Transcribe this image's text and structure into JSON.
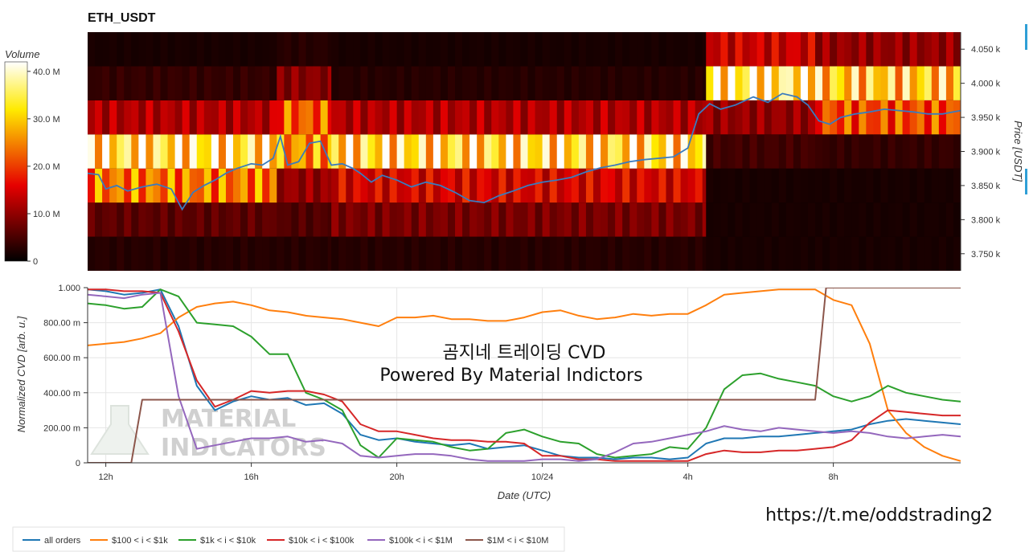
{
  "page": {
    "title": "ETH_USDT",
    "overlay_title": "곰지네 트레이딩 CVD",
    "overlay_subtitle": "Powered By Material Indictors",
    "watermark_line1": "MATERIAL",
    "watermark_line2": "INDICATORS",
    "url": "https://t.me/oddstrading2"
  },
  "colors": {
    "all_orders": "#1f77b4",
    "band_100_1k": "#ff7f0e",
    "band_1k_10k": "#2ca02c",
    "band_10k_100k": "#d62728",
    "band_100k_1m": "#9467bd",
    "band_1m_10m": "#8c564b",
    "price_line": "#3a7bbf"
  },
  "chart_data": [
    {
      "type": "heatmap",
      "title": "ETH_USDT",
      "colorbar": {
        "label": "Volume",
        "ticks": [
          "40.0 M",
          "30.0 M",
          "20.0 M",
          "10.0 M",
          "0"
        ],
        "tick_values": [
          40,
          30,
          20,
          10,
          0
        ],
        "range": [
          0,
          42
        ],
        "colorscale": "hot"
      },
      "ylabel": "Price [USDT]",
      "ylim": [
        3725,
        4075
      ],
      "yticks": [
        "3.750 k",
        "3.800 k",
        "3.850 k",
        "3.900 k",
        "3.950 k",
        "4.000 k",
        "4.050 k"
      ],
      "ytick_values": [
        3750,
        3800,
        3850,
        3900,
        3950,
        4000,
        4050
      ],
      "price_levels": [
        3750,
        3800,
        3850,
        3900,
        3950,
        4000,
        4050
      ],
      "xlim": [
        11.5,
        35.5
      ],
      "segments": [
        {
          "x": [
            11.5,
            16.7
          ],
          "volume_by_level": [
            2,
            6,
            24,
            34,
            12,
            3,
            1
          ]
        },
        {
          "x": [
            16.7,
            18.2
          ],
          "volume_by_level": [
            2,
            5,
            10,
            26,
            22,
            9,
            2
          ]
        },
        {
          "x": [
            18.2,
            28.5
          ],
          "volume_by_level": [
            2,
            8,
            15,
            33,
            12,
            2,
            1
          ]
        },
        {
          "x": [
            28.5,
            31.5
          ],
          "volume_by_level": [
            1,
            1,
            1,
            4,
            10,
            36,
            14
          ]
        },
        {
          "x": [
            31.5,
            35.5
          ],
          "volume_by_level": [
            1,
            1,
            1,
            3,
            21,
            31,
            10
          ]
        }
      ],
      "price_series": {
        "x": [
          11.5,
          11.8,
          12.0,
          12.3,
          12.6,
          13.0,
          13.4,
          13.8,
          14.1,
          14.4,
          14.7,
          15.0,
          15.3,
          15.6,
          16.0,
          16.3,
          16.6,
          16.8,
          17.0,
          17.3,
          17.6,
          17.9,
          18.2,
          18.5,
          18.8,
          19.0,
          19.3,
          19.6,
          20.0,
          20.4,
          20.8,
          21.2,
          21.6,
          22.0,
          22.4,
          22.8,
          23.2,
          23.6,
          24.0,
          24.4,
          24.8,
          25.2,
          25.6,
          26.0,
          26.4,
          26.8,
          27.2,
          27.6,
          28.0,
          28.3,
          28.6,
          28.9,
          29.3,
          29.8,
          30.2,
          30.6,
          31.0,
          31.3,
          31.6,
          31.9,
          32.2,
          32.6,
          33.0,
          33.4,
          33.8,
          34.2,
          34.6,
          35.0,
          35.5
        ],
        "y": [
          3868,
          3866,
          3845,
          3850,
          3842,
          3848,
          3852,
          3845,
          3815,
          3840,
          3850,
          3858,
          3868,
          3875,
          3882,
          3880,
          3890,
          3922,
          3880,
          3885,
          3912,
          3915,
          3880,
          3882,
          3875,
          3868,
          3855,
          3865,
          3858,
          3848,
          3855,
          3850,
          3840,
          3828,
          3825,
          3835,
          3842,
          3850,
          3855,
          3858,
          3862,
          3870,
          3876,
          3880,
          3885,
          3888,
          3890,
          3892,
          3905,
          3955,
          3970,
          3962,
          3968,
          3980,
          3972,
          3985,
          3980,
          3968,
          3945,
          3940,
          3950,
          3955,
          3958,
          3962,
          3960,
          3958,
          3955,
          3955,
          3960
        ]
      }
    },
    {
      "type": "line",
      "xlabel": "Date (UTC)",
      "ylabel": "Normalized CVD [arb. u.]",
      "ylim": [
        0,
        1.0
      ],
      "yticks": [
        "0",
        "200.00 m",
        "400.00 m",
        "600.00 m",
        "800.00 m",
        "1.000"
      ],
      "ytick_values": [
        0,
        0.2,
        0.4,
        0.6,
        0.8,
        1.0
      ],
      "xlim": [
        11.5,
        35.5
      ],
      "xticks": [
        "12h",
        "16h",
        "20h",
        "10/24",
        "4h",
        "8h"
      ],
      "xtick_values": [
        12,
        16,
        20,
        24,
        28,
        32
      ],
      "series": [
        {
          "name": "all orders",
          "color_key": "all_orders",
          "x": [
            11.5,
            12.0,
            12.5,
            13.0,
            13.5,
            14.0,
            14.5,
            15.0,
            15.5,
            16.0,
            16.5,
            17.0,
            17.5,
            18.0,
            18.5,
            19.0,
            19.5,
            20.0,
            20.5,
            21.0,
            21.5,
            22.0,
            22.5,
            23.0,
            23.5,
            24.0,
            24.5,
            25.0,
            25.5,
            26.0,
            26.5,
            27.0,
            27.5,
            28.0,
            28.5,
            29.0,
            29.5,
            30.0,
            30.5,
            31.0,
            31.5,
            32.0,
            32.5,
            33.0,
            33.5,
            34.0,
            34.5,
            35.0,
            35.5
          ],
          "y": [
            0.99,
            0.98,
            0.96,
            0.97,
            0.99,
            0.78,
            0.44,
            0.3,
            0.35,
            0.38,
            0.36,
            0.37,
            0.33,
            0.34,
            0.28,
            0.16,
            0.13,
            0.14,
            0.12,
            0.11,
            0.1,
            0.11,
            0.08,
            0.09,
            0.1,
            0.07,
            0.04,
            0.03,
            0.03,
            0.02,
            0.03,
            0.03,
            0.02,
            0.03,
            0.11,
            0.14,
            0.14,
            0.15,
            0.15,
            0.16,
            0.17,
            0.18,
            0.19,
            0.22,
            0.24,
            0.25,
            0.24,
            0.23,
            0.22
          ]
        },
        {
          "name": "$100 < i < $1k",
          "color_key": "band_100_1k",
          "x": [
            11.5,
            12.0,
            12.5,
            13.0,
            13.5,
            14.0,
            14.5,
            15.0,
            15.5,
            16.0,
            16.5,
            17.0,
            17.5,
            18.0,
            18.5,
            19.0,
            19.5,
            20.0,
            20.5,
            21.0,
            21.5,
            22.0,
            22.5,
            23.0,
            23.5,
            24.0,
            24.5,
            25.0,
            25.5,
            26.0,
            26.5,
            27.0,
            27.5,
            28.0,
            28.5,
            29.0,
            29.5,
            30.0,
            30.5,
            31.0,
            31.5,
            32.0,
            32.5,
            33.0,
            33.5,
            34.0,
            34.5,
            35.0,
            35.5
          ],
          "y": [
            0.67,
            0.68,
            0.69,
            0.71,
            0.74,
            0.83,
            0.89,
            0.91,
            0.92,
            0.9,
            0.87,
            0.86,
            0.84,
            0.83,
            0.82,
            0.8,
            0.78,
            0.83,
            0.83,
            0.84,
            0.82,
            0.82,
            0.81,
            0.81,
            0.83,
            0.86,
            0.87,
            0.84,
            0.82,
            0.83,
            0.85,
            0.84,
            0.85,
            0.85,
            0.9,
            0.96,
            0.97,
            0.98,
            0.99,
            0.99,
            0.99,
            0.93,
            0.9,
            0.68,
            0.3,
            0.17,
            0.09,
            0.04,
            0.01
          ]
        },
        {
          "name": "$1k < i < $10k",
          "color_key": "band_1k_10k",
          "x": [
            11.5,
            12.0,
            12.5,
            13.0,
            13.5,
            14.0,
            14.5,
            15.0,
            15.5,
            16.0,
            16.5,
            17.0,
            17.5,
            18.0,
            18.5,
            19.0,
            19.5,
            20.0,
            20.5,
            21.0,
            21.5,
            22.0,
            22.5,
            23.0,
            23.5,
            24.0,
            24.5,
            25.0,
            25.5,
            26.0,
            26.5,
            27.0,
            27.5,
            28.0,
            28.5,
            29.0,
            29.5,
            30.0,
            30.5,
            31.0,
            31.5,
            32.0,
            32.5,
            33.0,
            33.5,
            34.0,
            34.5,
            35.0,
            35.5
          ],
          "y": [
            0.91,
            0.9,
            0.88,
            0.89,
            0.99,
            0.95,
            0.8,
            0.79,
            0.78,
            0.72,
            0.62,
            0.62,
            0.4,
            0.36,
            0.3,
            0.1,
            0.03,
            0.14,
            0.13,
            0.12,
            0.09,
            0.07,
            0.08,
            0.17,
            0.19,
            0.15,
            0.12,
            0.11,
            0.05,
            0.03,
            0.04,
            0.05,
            0.09,
            0.08,
            0.2,
            0.42,
            0.5,
            0.51,
            0.48,
            0.46,
            0.44,
            0.38,
            0.35,
            0.38,
            0.44,
            0.4,
            0.38,
            0.36,
            0.35
          ]
        },
        {
          "name": "$10k < i < $100k",
          "color_key": "band_10k_100k",
          "x": [
            11.5,
            12.0,
            12.5,
            13.0,
            13.5,
            14.0,
            14.5,
            15.0,
            15.5,
            16.0,
            16.5,
            17.0,
            17.5,
            18.0,
            18.5,
            19.0,
            19.5,
            20.0,
            20.5,
            21.0,
            21.5,
            22.0,
            22.5,
            23.0,
            23.5,
            24.0,
            24.5,
            25.0,
            25.5,
            26.0,
            26.5,
            27.0,
            27.5,
            28.0,
            28.5,
            29.0,
            29.5,
            30.0,
            30.5,
            31.0,
            31.5,
            32.0,
            32.5,
            33.0,
            33.5,
            34.0,
            34.5,
            35.0,
            35.5
          ],
          "y": [
            0.99,
            0.99,
            0.98,
            0.98,
            0.97,
            0.75,
            0.47,
            0.32,
            0.36,
            0.41,
            0.4,
            0.41,
            0.41,
            0.39,
            0.35,
            0.22,
            0.18,
            0.18,
            0.16,
            0.14,
            0.13,
            0.13,
            0.12,
            0.12,
            0.11,
            0.04,
            0.04,
            0.02,
            0.02,
            0.01,
            0.01,
            0.01,
            0.01,
            0.01,
            0.05,
            0.07,
            0.06,
            0.06,
            0.07,
            0.07,
            0.08,
            0.09,
            0.13,
            0.23,
            0.3,
            0.29,
            0.28,
            0.27,
            0.27
          ]
        },
        {
          "name": "$100k < i < $1M",
          "color_key": "band_100k_1m",
          "x": [
            11.5,
            12.0,
            12.5,
            13.0,
            13.5,
            14.0,
            14.5,
            15.0,
            15.5,
            16.0,
            16.5,
            17.0,
            17.5,
            18.0,
            18.5,
            19.0,
            19.5,
            20.0,
            20.5,
            21.0,
            21.5,
            22.0,
            22.5,
            23.0,
            23.5,
            24.0,
            24.5,
            25.0,
            25.5,
            26.0,
            26.5,
            27.0,
            27.5,
            28.0,
            28.5,
            29.0,
            29.5,
            30.0,
            30.5,
            31.0,
            31.5,
            32.0,
            32.5,
            33.0,
            33.5,
            34.0,
            34.5,
            35.0,
            35.5
          ],
          "y": [
            0.96,
            0.95,
            0.94,
            0.96,
            0.97,
            0.38,
            0.08,
            0.1,
            0.12,
            0.14,
            0.14,
            0.15,
            0.12,
            0.13,
            0.11,
            0.04,
            0.03,
            0.04,
            0.05,
            0.05,
            0.04,
            0.02,
            0.01,
            0.01,
            0.01,
            0.02,
            0.02,
            0.01,
            0.02,
            0.06,
            0.11,
            0.12,
            0.14,
            0.16,
            0.18,
            0.21,
            0.19,
            0.18,
            0.2,
            0.19,
            0.18,
            0.17,
            0.18,
            0.17,
            0.15,
            0.14,
            0.15,
            0.16,
            0.15
          ]
        },
        {
          "name": "$1M < i < $10M",
          "color_key": "band_1m_10m",
          "x": [
            11.5,
            12.7,
            12.7,
            13.0,
            13.0,
            31.5,
            31.5,
            31.8,
            31.8,
            35.5
          ],
          "y": [
            0.0,
            0.0,
            0.0,
            0.36,
            0.36,
            0.36,
            0.36,
            1.0,
            1.0,
            1.0
          ]
        }
      ],
      "legend": {
        "placement": "bottom-left",
        "entries": [
          "all orders",
          "$100 < i < $1k",
          "$1k < i < $10k",
          "$10k < i < $100k",
          "$100k < i < $1M",
          "$1M < i < $10M"
        ]
      }
    }
  ]
}
